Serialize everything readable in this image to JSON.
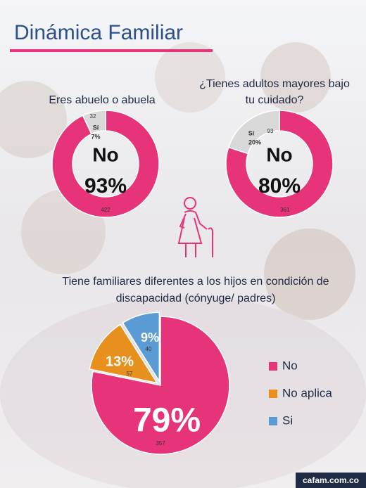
{
  "header": {
    "title": "Dinámica Familiar"
  },
  "footer": {
    "text": "cafam.com.co"
  },
  "chart_data": [
    {
      "type": "donut",
      "title": [
        "Eres abuelo o abuela"
      ],
      "categories": [
        "No",
        "Sí"
      ],
      "values": [
        93,
        7
      ],
      "value_labels": [
        "93%",
        "7%"
      ],
      "counts": [
        422,
        32
      ],
      "colors": [
        "#e6337a",
        "#d9d9d9"
      ]
    },
    {
      "type": "donut",
      "title": [
        "¿Tienes adultos mayores bajo",
        "tu cuidado?"
      ],
      "categories": [
        "No",
        "Sí"
      ],
      "values": [
        80,
        20
      ],
      "value_labels": [
        "80%",
        "20%"
      ],
      "counts": [
        361,
        93
      ],
      "colors": [
        "#e6337a",
        "#d9d9d9"
      ]
    },
    {
      "type": "pie",
      "title": [
        "Tiene familiares diferentes a los hijos en condición de",
        "discapacidad (cónyuge/ padres)"
      ],
      "categories": [
        "No",
        "No aplica",
        "Si"
      ],
      "values": [
        79,
        13,
        9
      ],
      "value_labels": [
        "79%",
        "13%",
        "9%"
      ],
      "counts": [
        357,
        57,
        40
      ],
      "colors": [
        "#e6337a",
        "#e8901e",
        "#5b9bd5"
      ],
      "legend": "right"
    }
  ]
}
